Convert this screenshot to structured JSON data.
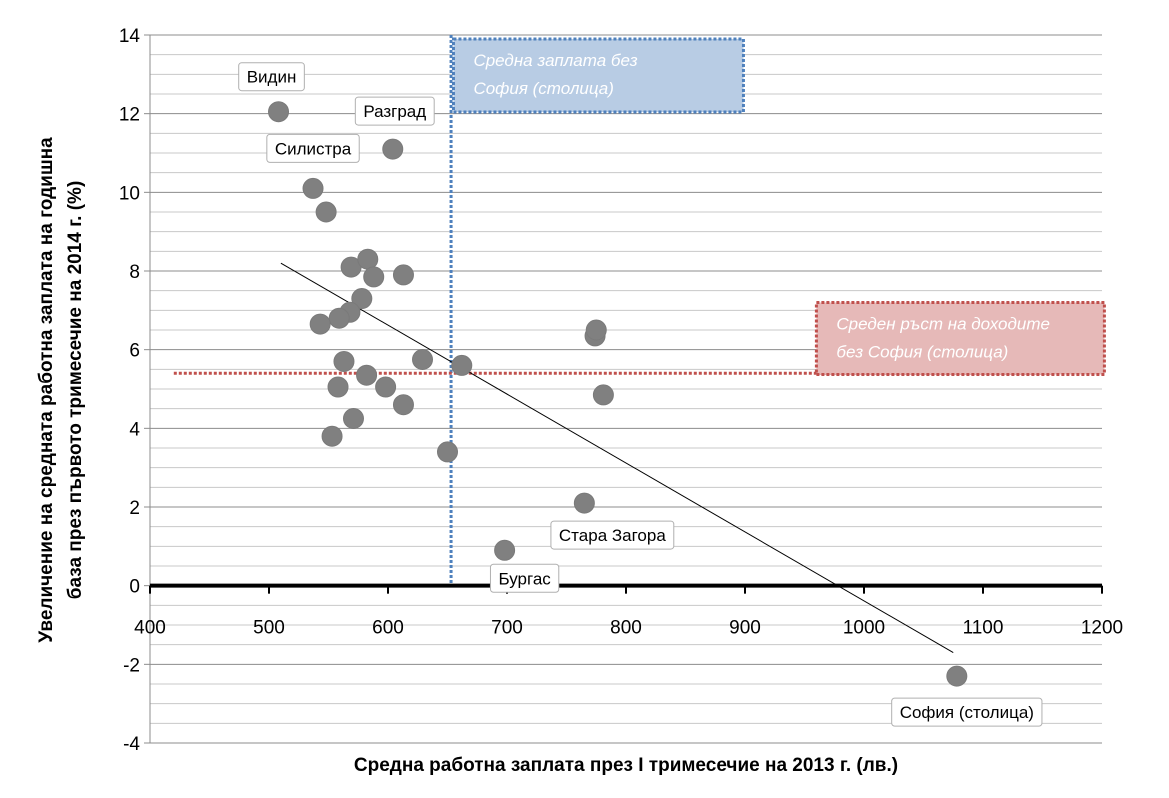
{
  "chart_data": {
    "type": "scatter",
    "title": "",
    "xlabel": "Средна работна заплата през I тримесечие на 2013 г. (лв.)",
    "ylabel_lines": [
      "Увеличение на средната работна заплата на годишна",
      "база през първото тримесечие на 2014 г.  (%)"
    ],
    "xlim": [
      400,
      1200
    ],
    "ylim": [
      -4,
      14
    ],
    "x_ticks": [
      400,
      500,
      600,
      700,
      800,
      900,
      1000,
      1100,
      1200
    ],
    "y_ticks": [
      -4,
      -2,
      0,
      2,
      4,
      6,
      8,
      10,
      12,
      14
    ],
    "grid": "horizontal",
    "colors": {
      "points": "#808080",
      "avg_salary_line": "#4f81bd",
      "avg_growth_line": "#c0504d",
      "avg_salary_box": "#b8cce4",
      "avg_growth_box": "#e6b9b8"
    },
    "points": [
      {
        "x": 508,
        "y": 12.05
      },
      {
        "x": 537,
        "y": 10.1
      },
      {
        "x": 548,
        "y": 9.5
      },
      {
        "x": 604,
        "y": 11.1
      },
      {
        "x": 569,
        "y": 8.1
      },
      {
        "x": 583,
        "y": 8.3
      },
      {
        "x": 588,
        "y": 7.85
      },
      {
        "x": 613,
        "y": 7.9
      },
      {
        "x": 578,
        "y": 7.3
      },
      {
        "x": 568,
        "y": 6.95
      },
      {
        "x": 559,
        "y": 6.8
      },
      {
        "x": 543,
        "y": 6.65
      },
      {
        "x": 563,
        "y": 5.7
      },
      {
        "x": 629,
        "y": 5.75
      },
      {
        "x": 582,
        "y": 5.35
      },
      {
        "x": 558,
        "y": 5.05
      },
      {
        "x": 598,
        "y": 5.05
      },
      {
        "x": 613,
        "y": 4.6
      },
      {
        "x": 571,
        "y": 4.25
      },
      {
        "x": 553,
        "y": 3.8
      },
      {
        "x": 650,
        "y": 3.4
      },
      {
        "x": 662,
        "y": 5.6
      },
      {
        "x": 774,
        "y": 6.35
      },
      {
        "x": 775,
        "y": 6.5
      },
      {
        "x": 781,
        "y": 4.85
      },
      {
        "x": 765,
        "y": 2.1
      },
      {
        "x": 698,
        "y": 0.9
      },
      {
        "x": 1078,
        "y": -2.3
      }
    ],
    "trendline": {
      "x": [
        510,
        1075
      ],
      "y": [
        8.2,
        -1.7
      ]
    },
    "reference_lines": {
      "avg_salary_without_sofia_x": 653,
      "avg_growth_without_sofia_y": 5.4
    },
    "point_labels": [
      {
        "text": "Видин",
        "x": 508,
        "y": 12.05
      },
      {
        "text": "Разград",
        "x": 604,
        "y": 11.1
      },
      {
        "text": "Силистра",
        "x": 537,
        "y": 10.1
      },
      {
        "text": "Стара Загора",
        "x": 765,
        "y": 2.1
      },
      {
        "text": "Бургас",
        "x": 698,
        "y": 0.9
      },
      {
        "text": "София (столица)",
        "x": 1078,
        "y": -2.3
      }
    ],
    "annotations": {
      "avg_salary_box": [
        "Средна заплата   без",
        "София (столица)"
      ],
      "avg_growth_box": [
        "Среден ръст на доходите",
        "без София (столица)"
      ]
    }
  }
}
